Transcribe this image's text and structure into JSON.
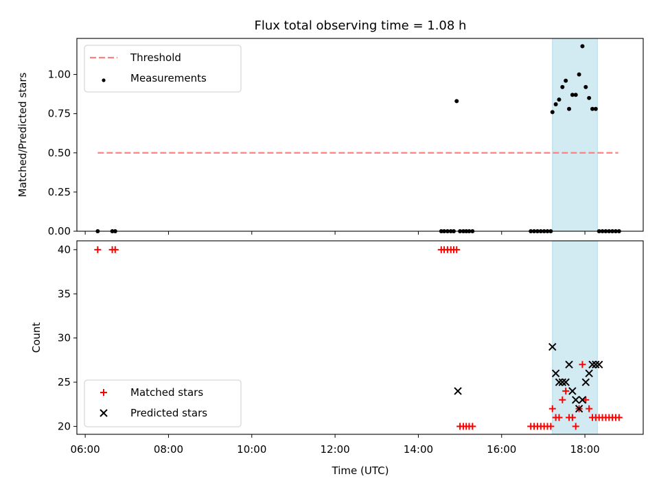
{
  "chart_data": {
    "title": "Flux total observing time = 1.08 h",
    "x_axis": {
      "label": "Time (UTC)",
      "ticks": [
        "06:00",
        "08:00",
        "10:00",
        "12:00",
        "14:00",
        "16:00",
        "18:00"
      ],
      "tick_values_hours": [
        6,
        8,
        10,
        12,
        14,
        16,
        18
      ],
      "range_hours": [
        5.8,
        19.4
      ]
    },
    "shaded_span_hours": [
      17.22,
      18.3
    ],
    "shaded_color": "#add8e6",
    "panels": [
      {
        "type": "scatter",
        "ylabel": "Matched/Predicted stars",
        "ylim": [
          0,
          1.23
        ],
        "yticks": [
          "0.00",
          "0.25",
          "0.50",
          "0.75",
          "1.00"
        ],
        "ytick_values": [
          0,
          0.25,
          0.5,
          0.75,
          1.0
        ],
        "legend_position": "upper-left",
        "series": [
          {
            "name": "Threshold",
            "kind": "dashed-line",
            "color": "#ff7f7f",
            "x": [
              6.3,
              18.8
            ],
            "y": [
              0.5,
              0.5
            ]
          },
          {
            "name": "Measurements",
            "kind": "dots",
            "color": "#000000",
            "x": [
              6.3,
              6.65,
              6.72,
              14.55,
              14.62,
              14.7,
              14.78,
              14.85,
              14.92,
              15.0,
              15.08,
              15.15,
              15.22,
              15.3,
              16.7,
              16.78,
              16.86,
              16.94,
              17.02,
              17.1,
              17.18,
              17.22,
              17.3,
              17.38,
              17.46,
              17.54,
              17.62,
              17.7,
              17.78,
              17.86,
              17.94,
              18.02,
              18.1,
              18.18,
              18.26,
              18.34,
              18.42,
              18.5,
              18.58,
              18.66,
              18.74,
              18.82
            ],
            "y": [
              0,
              0,
              0,
              0,
              0,
              0,
              0,
              0,
              0.83,
              0,
              0,
              0,
              0,
              0,
              0,
              0,
              0,
              0,
              0,
              0,
              0,
              0.76,
              0.81,
              0.84,
              0.92,
              0.96,
              0.78,
              0.87,
              0.87,
              1.0,
              1.18,
              0.92,
              0.85,
              0.78,
              0.78,
              0,
              0,
              0,
              0,
              0,
              0,
              0
            ]
          }
        ]
      },
      {
        "type": "scatter",
        "ylabel": "Count",
        "ylim": [
          19.1,
          41.0
        ],
        "yticks": [
          "20",
          "25",
          "30",
          "35",
          "40"
        ],
        "ytick_values": [
          20,
          25,
          30,
          35,
          40
        ],
        "legend_position": "lower-left",
        "series": [
          {
            "name": "Matched stars",
            "kind": "plus",
            "color": "#ff0000",
            "x": [
              6.3,
              6.65,
              6.72,
              14.55,
              14.62,
              14.7,
              14.78,
              14.85,
              14.92,
              15.0,
              15.08,
              15.15,
              15.22,
              15.3,
              16.7,
              16.78,
              16.86,
              16.94,
              17.02,
              17.1,
              17.18,
              17.22,
              17.3,
              17.38,
              17.46,
              17.54,
              17.62,
              17.7,
              17.78,
              17.86,
              17.94,
              18.02,
              18.1,
              18.18,
              18.26,
              18.34,
              18.42,
              18.5,
              18.58,
              18.66,
              18.74,
              18.82
            ],
            "y": [
              40,
              40,
              40,
              40,
              40,
              40,
              40,
              40,
              40,
              20,
              20,
              20,
              20,
              20,
              20,
              20,
              20,
              20,
              20,
              20,
              20,
              22,
              21,
              21,
              23,
              24,
              21,
              21,
              20,
              22,
              27,
              23,
              22,
              21,
              21,
              21,
              21,
              21,
              21,
              21,
              21,
              21
            ]
          },
          {
            "name": "Predicted stars",
            "kind": "cross",
            "color": "#000000",
            "x": [
              14.95,
              17.22,
              17.3,
              17.38,
              17.46,
              17.54,
              17.62,
              17.7,
              17.78,
              17.86,
              17.94,
              18.02,
              18.1,
              18.18,
              18.26,
              18.34
            ],
            "y": [
              24,
              29,
              26,
              25,
              25,
              25,
              27,
              24,
              23,
              22,
              23,
              25,
              26,
              27,
              27,
              27
            ]
          }
        ]
      }
    ]
  }
}
